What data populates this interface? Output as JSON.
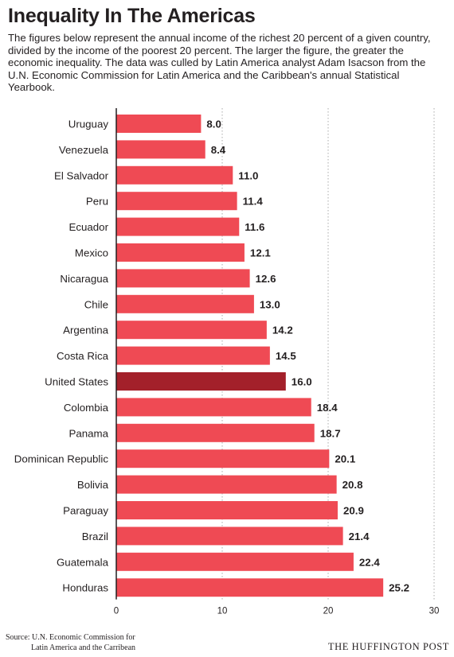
{
  "title": "Inequality In The Americas",
  "subtitle": "The figures below represent the annual income of the richest 20 percent of a given country, divided by the income of the poorest 20 percent. The larger the figure, the greater the economic inequality. The data was culled by Latin America analyst Adam Isacson from the U.N. Economic Commission for Latin America and the Caribbean's annual Statistical Yearbook.",
  "source": {
    "line1": "Source: U.N. Economic Commission for",
    "line2": "Latin America and the Carribean"
  },
  "brand": "THE HUFFINGTON POST",
  "colors": {
    "bar": "#ef4a54",
    "highlight": "#a3202a",
    "text": "#231f20",
    "grid": "#aaaaaa"
  },
  "chart_data": {
    "type": "bar",
    "orientation": "horizontal",
    "categories": [
      "Uruguay",
      "Venezuela",
      "El Salvador",
      "Peru",
      "Ecuador",
      "Mexico",
      "Nicaragua",
      "Chile",
      "Argentina",
      "Costa Rica",
      "United States",
      "Colombia",
      "Panama",
      "Dominican Republic",
      "Bolivia",
      "Paraguay",
      "Brazil",
      "Guatemala",
      "Honduras"
    ],
    "values": [
      8.0,
      8.4,
      11.0,
      11.4,
      11.6,
      12.1,
      12.6,
      13.0,
      14.2,
      14.5,
      16.0,
      18.4,
      18.7,
      20.1,
      20.8,
      20.9,
      21.4,
      22.4,
      25.2
    ],
    "value_labels": [
      "8.0",
      "8.4",
      "11.0",
      "11.4",
      "11.6",
      "12.1",
      "12.6",
      "13.0",
      "14.2",
      "14.5",
      "16.0",
      "18.4",
      "18.7",
      "20.1",
      "20.8",
      "20.9",
      "21.4",
      "22.4",
      "25.2"
    ],
    "highlight": "United States",
    "xlim": [
      0,
      30
    ],
    "xticks": [
      0,
      10,
      20,
      30
    ],
    "xtick_labels": [
      "0",
      "10",
      "20",
      "30"
    ],
    "grid": "vertical dotted"
  }
}
